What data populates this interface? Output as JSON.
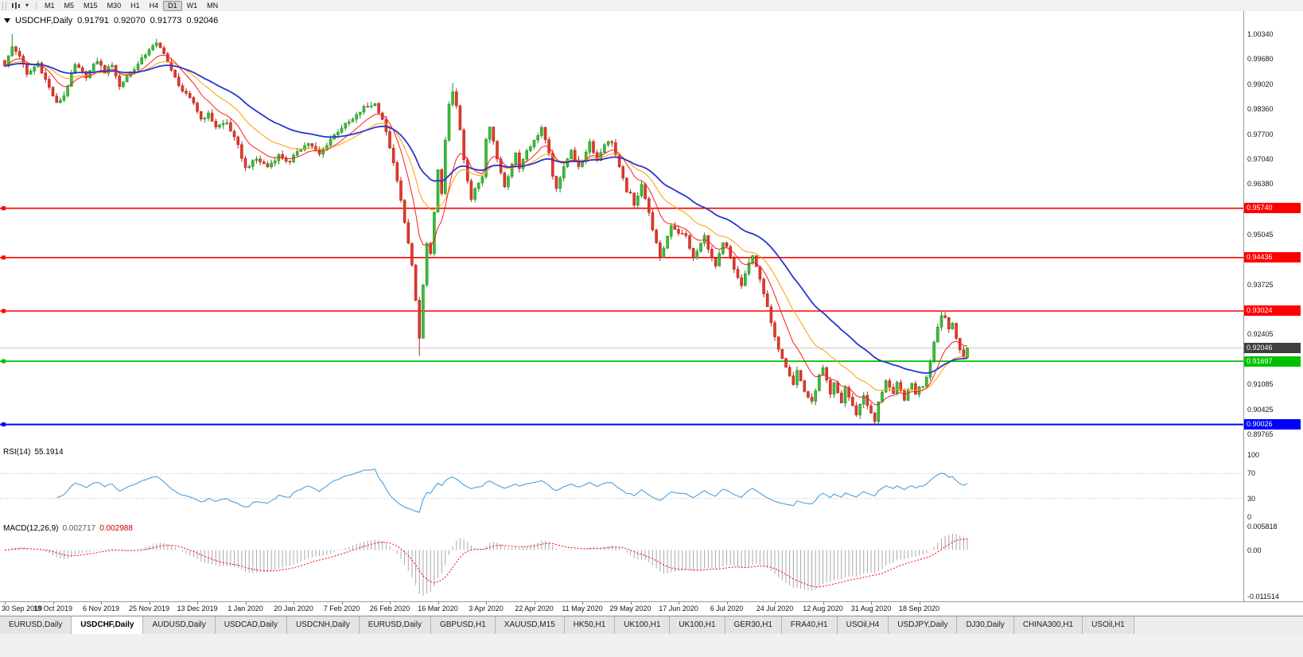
{
  "toolbar": {
    "timeframes": [
      "M1",
      "M5",
      "M15",
      "M30",
      "H1",
      "H4",
      "D1",
      "W1",
      "MN"
    ],
    "active_timeframe": "D1"
  },
  "chart": {
    "title": {
      "symbol_period": "USDCHF,Daily",
      "open": "0.91791",
      "high": "0.92070",
      "low": "0.91773",
      "close": "0.92046"
    },
    "y_axis_ticks": [
      "1.00340",
      "0.99680",
      "0.99020",
      "0.98360",
      "0.97700",
      "0.97040",
      "0.96380",
      "0.95045",
      "0.93725",
      "0.92405",
      "0.91085",
      "0.90425",
      "0.89765"
    ],
    "price_lines": [
      {
        "label": "0.95740",
        "value": 0.9574,
        "color": "#ff0000",
        "width": 1.6
      },
      {
        "label": "0.94436",
        "value": 0.94436,
        "color": "#ff0000",
        "width": 1.6
      },
      {
        "label": "0.93024",
        "value": 0.93024,
        "color": "#ff0000",
        "width": 1.6
      },
      {
        "label": "0.91697",
        "value": 0.91697,
        "color": "#00c100",
        "width": 1.8
      },
      {
        "label": "0.90026",
        "value": 0.90026,
        "color": "#0000ff",
        "width": 2
      }
    ],
    "current_price": {
      "label": "0.92046",
      "value": 0.92046,
      "badge_color": "#3f3f3f",
      "line_color": "#c8c8c8"
    },
    "x_axis_labels": [
      {
        "label": "30 Sep 2019",
        "bar": 0
      },
      {
        "label": "18 Oct 2019",
        "bar": 13
      },
      {
        "label": "6 Nov 2019",
        "bar": 26
      },
      {
        "label": "25 Nov 2019",
        "bar": 39
      },
      {
        "label": "13 Dec 2019",
        "bar": 52
      },
      {
        "label": "1 Jan 2020",
        "bar": 65
      },
      {
        "label": "20 Jan 2020",
        "bar": 78
      },
      {
        "label": "7 Feb 2020",
        "bar": 91
      },
      {
        "label": "26 Feb 2020",
        "bar": 104
      },
      {
        "label": "16 Mar 2020",
        "bar": 117
      },
      {
        "label": "3 Apr 2020",
        "bar": 130
      },
      {
        "label": "22 Apr 2020",
        "bar": 143
      },
      {
        "label": "11 May 2020",
        "bar": 156
      },
      {
        "label": "29 May 2020",
        "bar": 169
      },
      {
        "label": "17 Jun 2020",
        "bar": 182
      },
      {
        "label": "6 Jul 2020",
        "bar": 195
      },
      {
        "label": "24 Jul 2020",
        "bar": 208
      },
      {
        "label": "12 Aug 2020",
        "bar": 221
      },
      {
        "label": "31 Aug 2020",
        "bar": 234
      },
      {
        "label": "18 Sep 2020",
        "bar": 247
      }
    ],
    "colors": {
      "up_stroke": "#1f8f1f",
      "up_fill": "#3bbf3b",
      "down_stroke": "#b7281d",
      "down_fill": "#e2382b",
      "ma_fast": "#ff1c1c",
      "ma_mid": "#ff9d00",
      "ma_slow": "#2a35cf"
    }
  },
  "rsi": {
    "name": "RSI(14)",
    "value": "55.1914",
    "axis_labels": [
      "100",
      "70",
      "30",
      "0"
    ],
    "levels": [
      70,
      30
    ],
    "line_color": "#4aa0e0"
  },
  "macd": {
    "name": "MACD(12,26,9)",
    "value_main": "0.002717",
    "value_signal": "0.002988",
    "axis_labels": [
      "0.005818",
      "0.00",
      "-0.011514"
    ],
    "scale_max": 0.005818,
    "scale_min": -0.011514,
    "hist_color": "#a8a8a8",
    "signal_color": "#ff0000"
  },
  "tabs": {
    "active_index": 1,
    "items": [
      "EURUSD,Daily",
      "USDCHF,Daily",
      "AUDUSD,Daily",
      "USDCAD,Daily",
      "USDCNH,Daily",
      "EURUSD,Daily",
      "GBPUSD,H1",
      "XAUUSD,M15",
      "HK50,H1",
      "UK100,H1",
      "UK100,H1",
      "GER30,H1",
      "FRA40,H1",
      "USOil,H4",
      "USDJPY,Daily",
      "DJ30,Daily",
      "CHINA300,H1",
      "USOil,H1"
    ]
  },
  "chart_data": {
    "type": "candlestick",
    "title": "USDCHF,Daily",
    "bar_count": 261,
    "price_axis": {
      "top": 1.0034,
      "bottom": 0.89765,
      "tick_step": 0.00661
    },
    "horizontal_levels": [
      0.9574,
      0.94436,
      0.93024,
      0.91697,
      0.90026
    ],
    "close_anchors": [
      [
        0,
        0.995
      ],
      [
        2,
        1.0
      ],
      [
        4,
        0.9978
      ],
      [
        6,
        0.9926
      ],
      [
        9,
        0.9958
      ],
      [
        11,
        0.9914
      ],
      [
        14,
        0.985
      ],
      [
        16,
        0.9872
      ],
      [
        19,
        0.9952
      ],
      [
        22,
        0.9923
      ],
      [
        25,
        0.9965
      ],
      [
        27,
        0.9934
      ],
      [
        29,
        0.9955
      ],
      [
        31,
        0.9895
      ],
      [
        33,
        0.9924
      ],
      [
        36,
        0.9954
      ],
      [
        39,
        0.9995
      ],
      [
        41,
        1.0008
      ],
      [
        43,
        0.9986
      ],
      [
        45,
        0.9936
      ],
      [
        48,
        0.9884
      ],
      [
        51,
        0.9852
      ],
      [
        53,
        0.981
      ],
      [
        55,
        0.9822
      ],
      [
        57,
        0.979
      ],
      [
        60,
        0.98
      ],
      [
        63,
        0.9738
      ],
      [
        65,
        0.968
      ],
      [
        68,
        0.9704
      ],
      [
        71,
        0.9684
      ],
      [
        74,
        0.9714
      ],
      [
        77,
        0.9694
      ],
      [
        79,
        0.9726
      ],
      [
        82,
        0.9746
      ],
      [
        85,
        0.9716
      ],
      [
        88,
        0.9757
      ],
      [
        91,
        0.9788
      ],
      [
        94,
        0.9808
      ],
      [
        97,
        0.984
      ],
      [
        100,
        0.985
      ],
      [
        102,
        0.981
      ],
      [
        104,
        0.9736
      ],
      [
        106,
        0.9645
      ],
      [
        108,
        0.954
      ],
      [
        110,
        0.942
      ],
      [
        111,
        0.933
      ],
      [
        112,
        0.923
      ],
      [
        113,
        0.937
      ],
      [
        114,
        0.948
      ],
      [
        115,
        0.945
      ],
      [
        116,
        0.956
      ],
      [
        117,
        0.968
      ],
      [
        118,
        0.961
      ],
      [
        119,
        0.975
      ],
      [
        120,
        0.985
      ],
      [
        121,
        0.9885
      ],
      [
        122,
        0.984
      ],
      [
        123,
        0.978
      ],
      [
        124,
        0.97
      ],
      [
        125,
        0.9645
      ],
      [
        126,
        0.9595
      ],
      [
        127,
        0.9625
      ],
      [
        129,
        0.966
      ],
      [
        130,
        0.976
      ],
      [
        131,
        0.979
      ],
      [
        133,
        0.9705
      ],
      [
        135,
        0.9635
      ],
      [
        137,
        0.969
      ],
      [
        138,
        0.972
      ],
      [
        139,
        0.968
      ],
      [
        141,
        0.973
      ],
      [
        143,
        0.975
      ],
      [
        145,
        0.979
      ],
      [
        147,
        0.972
      ],
      [
        148,
        0.966
      ],
      [
        149,
        0.963
      ],
      [
        151,
        0.968
      ],
      [
        153,
        0.973
      ],
      [
        155,
        0.968
      ],
      [
        156,
        0.97
      ],
      [
        158,
        0.975
      ],
      [
        160,
        0.97
      ],
      [
        162,
        0.9745
      ],
      [
        164,
        0.975
      ],
      [
        166,
        0.968
      ],
      [
        168,
        0.962
      ],
      [
        169,
        0.961
      ],
      [
        170,
        0.958
      ],
      [
        172,
        0.964
      ],
      [
        174,
        0.956
      ],
      [
        176,
        0.948
      ],
      [
        177,
        0.944
      ],
      [
        179,
        0.95
      ],
      [
        180,
        0.953
      ],
      [
        182,
        0.951
      ],
      [
        184,
        0.95
      ],
      [
        186,
        0.944
      ],
      [
        188,
        0.948
      ],
      [
        189,
        0.95
      ],
      [
        191,
        0.944
      ],
      [
        192,
        0.942
      ],
      [
        194,
        0.948
      ],
      [
        195,
        0.947
      ],
      [
        197,
        0.941
      ],
      [
        199,
        0.937
      ],
      [
        201,
        0.943
      ],
      [
        202,
        0.9445
      ],
      [
        204,
        0.939
      ],
      [
        206,
        0.931
      ],
      [
        208,
        0.923
      ],
      [
        210,
        0.918
      ],
      [
        212,
        0.9135
      ],
      [
        213,
        0.911
      ],
      [
        214,
        0.9145
      ],
      [
        216,
        0.909
      ],
      [
        218,
        0.906
      ],
      [
        220,
        0.913
      ],
      [
        221,
        0.915
      ],
      [
        223,
        0.908
      ],
      [
        224,
        0.911
      ],
      [
        226,
        0.906
      ],
      [
        227,
        0.91
      ],
      [
        229,
        0.905
      ],
      [
        230,
        0.903
      ],
      [
        232,
        0.908
      ],
      [
        234,
        0.903
      ],
      [
        235,
        0.901
      ],
      [
        236,
        0.906
      ],
      [
        238,
        0.912
      ],
      [
        240,
        0.908
      ],
      [
        241,
        0.911
      ],
      [
        243,
        0.907
      ],
      [
        245,
        0.911
      ],
      [
        246,
        0.9085
      ],
      [
        247,
        0.91
      ],
      [
        248,
        0.9105
      ],
      [
        249,
        0.913
      ],
      [
        250,
        0.917
      ],
      [
        251,
        0.922
      ],
      [
        252,
        0.926
      ],
      [
        253,
        0.929
      ],
      [
        254,
        0.9285
      ],
      [
        255,
        0.9255
      ],
      [
        256,
        0.927
      ],
      [
        257,
        0.923
      ],
      [
        258,
        0.92
      ],
      [
        259,
        0.918
      ],
      [
        260,
        0.92046
      ]
    ],
    "wick_overrides": [
      {
        "bar": 2,
        "high": 1.0034
      },
      {
        "bar": 41,
        "high": 1.0022
      },
      {
        "bar": 112,
        "low": 0.9183
      },
      {
        "bar": 121,
        "high": 0.9905
      },
      {
        "bar": 235,
        "low": 0.9
      },
      {
        "bar": 253,
        "high": 0.9302
      }
    ],
    "last_bar": {
      "open": 0.91791,
      "high": 0.9207,
      "low": 0.91773,
      "close": 0.92046
    },
    "indicators": {
      "ma_fast_period": 10,
      "ma_mid_period": 21,
      "ma_slow_period": 40,
      "rsi_period": 14,
      "macd_fast": 12,
      "macd_slow": 26,
      "macd_signal": 9
    }
  }
}
